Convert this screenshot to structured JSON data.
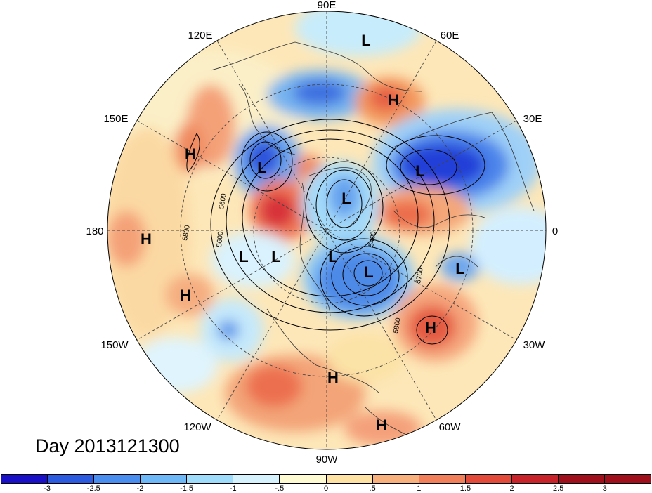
{
  "title": "Day 2013121300",
  "longitude_labels": [
    "90E",
    "60E",
    "30E",
    "0",
    "30W",
    "60W",
    "90W",
    "120W",
    "150W",
    "180",
    "150E",
    "120E"
  ],
  "centers": [
    "L",
    "H",
    "L",
    "L",
    "H",
    "L",
    "L",
    "H",
    "L",
    "L",
    "L",
    "L",
    "H",
    "H",
    "H",
    "H"
  ],
  "contour_labels": [
    "5600",
    "5800",
    "5600",
    "5400",
    "5700",
    "5800"
  ],
  "colorbar": {
    "ticks": [
      "-3",
      "-2.5",
      "-2",
      "-1.5",
      "-1",
      "-.5",
      "0",
      ".5",
      "1",
      "1.5",
      "2",
      "2.5",
      "3"
    ],
    "colors": [
      "#1a10c8",
      "#2c5be0",
      "#4a8ff0",
      "#6fb8f7",
      "#9fdcfb",
      "#d6f3fd",
      "#fefbd2",
      "#fde2a4",
      "#f8b07c",
      "#f07f5a",
      "#e44a3a",
      "#c8232a",
      "#a0101c"
    ]
  }
}
